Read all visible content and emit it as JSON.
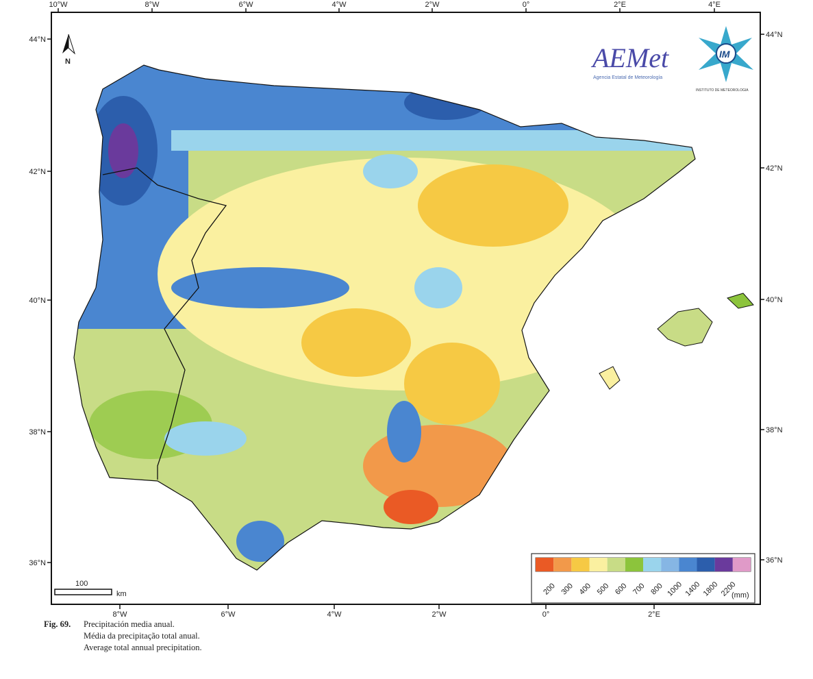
{
  "map": {
    "top_ticks": [
      "10°W",
      "8°W",
      "6°W",
      "4°W",
      "2°W",
      "0°",
      "2°E",
      "4°E"
    ],
    "bottom_ticks": [
      "8°W",
      "6°W",
      "4°W",
      "2°W",
      "0°",
      "2°E"
    ],
    "left_ticks": [
      "44°N",
      "42°N",
      "40°N",
      "38°N",
      "36°N"
    ],
    "right_ticks": [
      "44°N",
      "42°N",
      "40°N",
      "38°N",
      "36°N"
    ],
    "north_label": "N",
    "scale": {
      "value": "100",
      "unit": "km"
    }
  },
  "logos": {
    "aemet": "AEMet",
    "aemet_sub": "Agencia Estatal de Meteorología",
    "im": "IM",
    "im_sub": "INSTITUTO DE METEOROLOGIA"
  },
  "legend": {
    "unit": "(mm)",
    "labels": [
      "200",
      "300",
      "400",
      "500",
      "600",
      "700",
      "800",
      "1000",
      "1400",
      "1800",
      "2200"
    ],
    "colors": [
      "#ea5a25",
      "#f2994a",
      "#f6c944",
      "#faf0a0",
      "#c8dc86",
      "#8cc43c",
      "#9ad4ec",
      "#86b6e4",
      "#4a86d0",
      "#2c5eac",
      "#6a3a9c",
      "#e09ac8"
    ]
  },
  "caption": {
    "fig": "Fig. 69.",
    "es": "Precipitación media anual.",
    "pt": "Média da precipitação total anual.",
    "en": "Average total annual precipitation."
  }
}
